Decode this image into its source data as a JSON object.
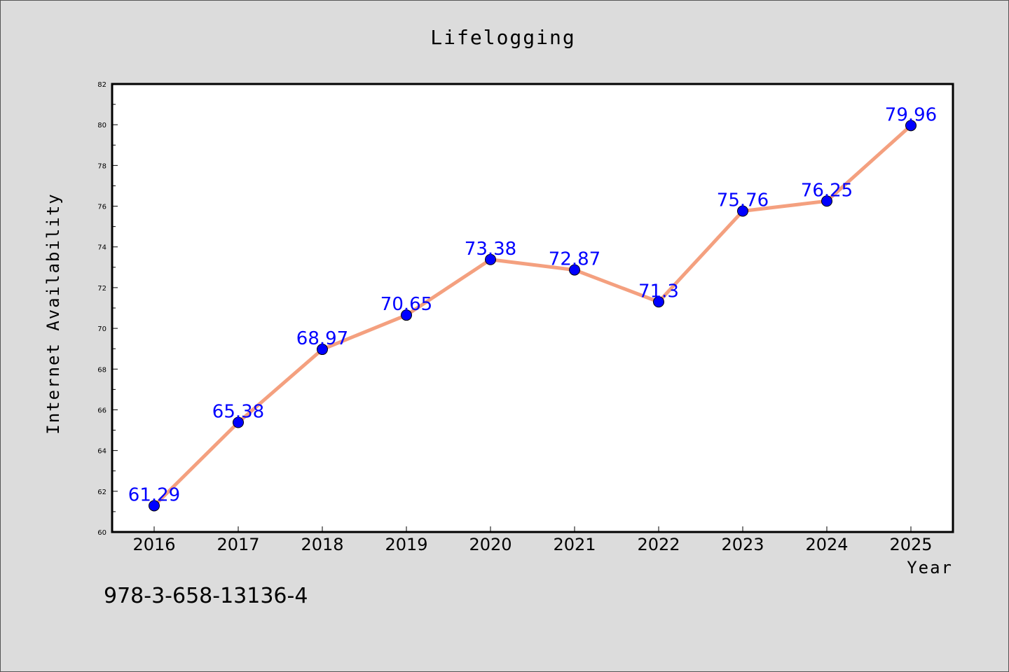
{
  "chart_data": {
    "type": "line",
    "title": "Lifelogging",
    "xlabel": "Year",
    "ylabel": "Internet Availability",
    "categories": [
      "2016",
      "2017",
      "2018",
      "2019",
      "2020",
      "2021",
      "2022",
      "2023",
      "2024",
      "2025"
    ],
    "series": [
      {
        "values": [
          61.29,
          65.38,
          68.97,
          70.65,
          73.38,
          72.87,
          71.3,
          75.76,
          76.25,
          79.96
        ],
        "labels": [
          "61.29",
          "65.38",
          "68.97",
          "70.65",
          "73.38",
          "72.87",
          "71.3",
          "75.76",
          "76.25",
          "79.96"
        ],
        "line_color": "#f4a07f",
        "marker_color": "#0000ff",
        "label_color": "#0000ff"
      }
    ],
    "ylim": [
      60,
      82
    ],
    "yticks": [
      60,
      62,
      64,
      66,
      68,
      70,
      72,
      74,
      76,
      78,
      80,
      82
    ],
    "grid": false,
    "legend": "none"
  },
  "footer": {
    "isbn": "978-3-658-13136-4"
  },
  "colors": {
    "background": "#dcdcdc",
    "plot_background": "#ffffff"
  }
}
